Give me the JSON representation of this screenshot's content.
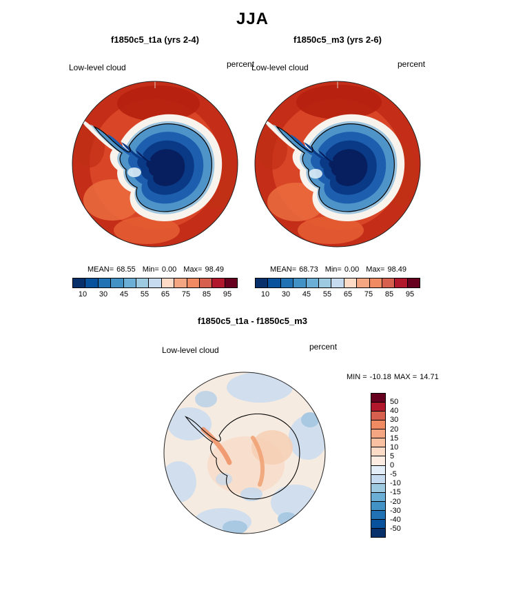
{
  "title": "JJA",
  "panels": {
    "left": {
      "title": "f1850c5_t1a (yrs 2-4)",
      "var_label": "Low-level cloud",
      "units": "percent",
      "stats": {
        "mean_label": "MEAN=",
        "mean": "68.55",
        "min_label": "Min=",
        "min": "0.00",
        "max_label": "Max=",
        "max": "98.49"
      }
    },
    "right": {
      "title": "f1850c5_m3 (yrs 2-6)",
      "var_label": "Low-level cloud",
      "units": "percent",
      "stats": {
        "mean_label": "MEAN=",
        "mean": "68.73",
        "min_label": "Min=",
        "min": "0.00",
        "max_label": "Max=",
        "max": "98.49"
      }
    },
    "diff": {
      "title": "f1850c5_t1a - f1850c5_m3",
      "var_label": "Low-level cloud",
      "units": "percent",
      "minmax": {
        "min_label": "MIN =",
        "min": "-10.18",
        "max_label": "MAX =",
        "max": "14.71"
      }
    }
  },
  "colorbar_top": {
    "tick_labels": [
      "10",
      "30",
      "45",
      "55",
      "65",
      "75",
      "85",
      "95"
    ],
    "colors": [
      "#08306b",
      "#08519c",
      "#2171b5",
      "#4292c6",
      "#6baed6",
      "#9ecae1",
      "#c6dbef",
      "#fddbc7",
      "#f4a582",
      "#ef8a62",
      "#d6604d",
      "#b2182b",
      "#67001f"
    ]
  },
  "colorbar_diff": {
    "tick_labels": [
      "50",
      "40",
      "30",
      "20",
      "15",
      "10",
      "5",
      "0",
      "-5",
      "-10",
      "-15",
      "-20",
      "-30",
      "-40",
      "-50"
    ],
    "colors": [
      "#67001f",
      "#b2182b",
      "#d6604d",
      "#ef8a62",
      "#f4a582",
      "#f9c0a2",
      "#fddbc7",
      "#fcece2",
      "#e3eef8",
      "#c6dbef",
      "#9ecae1",
      "#6baed6",
      "#4292c6",
      "#2171b5",
      "#08519c",
      "#08306b"
    ]
  },
  "chart_data": [
    {
      "type": "heatmap",
      "title": "f1850c5_t1a (yrs 2-4)",
      "season": "JJA",
      "variable": "Low-level cloud",
      "units": "percent",
      "projection": "south polar stereographic map",
      "mean": 68.55,
      "min": 0.0,
      "max": 98.49,
      "contour_levels": [
        10,
        30,
        45,
        55,
        65,
        75,
        85,
        95
      ],
      "legend_position": "bottom",
      "description": "High cloud fraction (75-95%, reds) over Southern Ocean; low cloud fraction (<30%, dark blues) over Antarctic continent"
    },
    {
      "type": "heatmap",
      "title": "f1850c5_m3 (yrs 2-6)",
      "season": "JJA",
      "variable": "Low-level cloud",
      "units": "percent",
      "projection": "south polar stereographic map",
      "mean": 68.73,
      "min": 0.0,
      "max": 98.49,
      "contour_levels": [
        10,
        30,
        45,
        55,
        65,
        75,
        85,
        95
      ],
      "legend_position": "bottom",
      "description": "Nearly identical pattern to t1a panel"
    },
    {
      "type": "heatmap",
      "title": "f1850c5_t1a - f1850c5_m3",
      "season": "JJA",
      "variable": "Low-level cloud difference",
      "units": "percent",
      "projection": "south polar stereographic map",
      "min": -10.18,
      "max": 14.71,
      "contour_levels": [
        50,
        40,
        30,
        20,
        15,
        10,
        5,
        0,
        -5,
        -10,
        -15,
        -20,
        -30,
        -40,
        -50
      ],
      "legend_position": "right",
      "description": "Small differences: pale blue (-5 to 0) patches around ocean periphery, pale pink (0 to +5) over continent with small +5 to +15 streaks"
    }
  ]
}
